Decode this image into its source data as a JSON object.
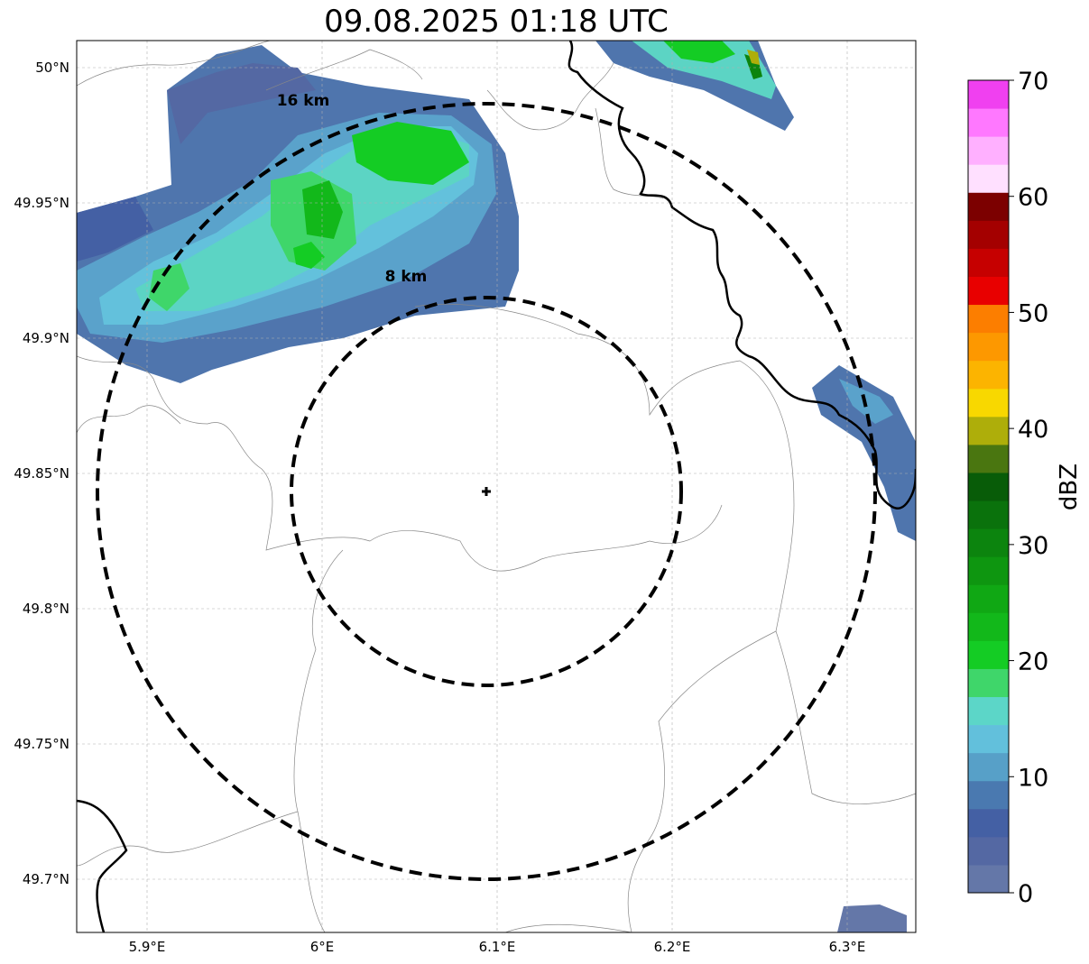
{
  "title": "09.08.2025 01:18 UTC",
  "map": {
    "center_marker": "plus-icon",
    "range_rings": [
      {
        "label": "8 km",
        "radius_km": 8
      },
      {
        "label": "16 km",
        "radius_km": 16
      }
    ],
    "lon_ticks": [
      {
        "value": 5.9,
        "label": "5.9°E"
      },
      {
        "value": 6.0,
        "label": "6°E"
      },
      {
        "value": 6.1,
        "label": "6.1°E"
      },
      {
        "value": 6.2,
        "label": "6.2°E"
      },
      {
        "value": 6.3,
        "label": "6.3°E"
      }
    ],
    "lat_ticks": [
      {
        "value": 50.0,
        "label": "50°N"
      },
      {
        "value": 49.95,
        "label": "49.95°N"
      },
      {
        "value": 49.9,
        "label": "49.9°N"
      },
      {
        "value": 49.85,
        "label": "49.85°N"
      },
      {
        "value": 49.8,
        "label": "49.8°N"
      },
      {
        "value": 49.75,
        "label": "49.75°N"
      },
      {
        "value": 49.7,
        "label": "49.7°N"
      }
    ],
    "grid": true
  },
  "colorbar": {
    "label": "dBZ",
    "ticks": [
      "0",
      "10",
      "20",
      "30",
      "40",
      "50",
      "60",
      "70"
    ],
    "colors": [
      "#6477a8",
      "#5468a3",
      "#4460a4",
      "#4a79b0",
      "#57a0c8",
      "#62c0dc",
      "#5cd6c8",
      "#3fd66a",
      "#14cc24",
      "#12b81a",
      "#10a814",
      "#0e9610",
      "#0c840e",
      "#0a720c",
      "#085c08",
      "#4a7610",
      "#aeae0a",
      "#f8d800",
      "#fcb400",
      "#fd9800",
      "#fc7e00",
      "#e80000",
      "#c60000",
      "#a40000",
      "#7c0000",
      "#ffe0ff",
      "#ffb0ff",
      "#ff78ff",
      "#f040f0"
    ]
  }
}
